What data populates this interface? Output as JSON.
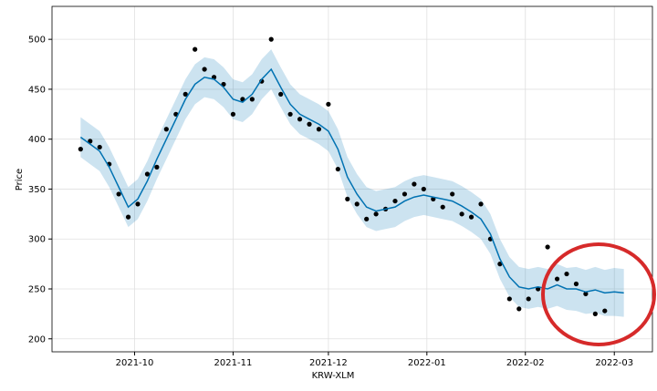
{
  "chart_data": {
    "type": "forecast",
    "xlabel": "KRW-XLM",
    "ylabel": "Price",
    "xlim": [
      "2021-09-05",
      "2022-03-13"
    ],
    "ylim": [
      187,
      533
    ],
    "xticks": [
      {
        "value": "2021-10-01",
        "label": "2021-10"
      },
      {
        "value": "2021-11-01",
        "label": "2021-11"
      },
      {
        "value": "2021-12-01",
        "label": "2021-12"
      },
      {
        "value": "2022-01-01",
        "label": "2022-01"
      },
      {
        "value": "2022-02-01",
        "label": "2022-02"
      },
      {
        "value": "2022-03-01",
        "label": "2022-03"
      }
    ],
    "yticks": [
      200,
      250,
      300,
      350,
      400,
      450,
      500
    ],
    "grid": true,
    "x": [
      "2021-09-14",
      "2021-09-17",
      "2021-09-20",
      "2021-09-23",
      "2021-09-26",
      "2021-09-29",
      "2021-10-02",
      "2021-10-05",
      "2021-10-08",
      "2021-10-11",
      "2021-10-14",
      "2021-10-17",
      "2021-10-20",
      "2021-10-23",
      "2021-10-26",
      "2021-10-29",
      "2021-11-01",
      "2021-11-04",
      "2021-11-07",
      "2021-11-10",
      "2021-11-13",
      "2021-11-16",
      "2021-11-19",
      "2021-11-22",
      "2021-11-25",
      "2021-11-28",
      "2021-12-01",
      "2021-12-04",
      "2021-12-07",
      "2021-12-10",
      "2021-12-13",
      "2021-12-16",
      "2021-12-19",
      "2021-12-22",
      "2021-12-25",
      "2021-12-28",
      "2021-12-31",
      "2022-01-03",
      "2022-01-06",
      "2022-01-09",
      "2022-01-12",
      "2022-01-15",
      "2022-01-18",
      "2022-01-21",
      "2022-01-24",
      "2022-01-27",
      "2022-01-30",
      "2022-02-02",
      "2022-02-05",
      "2022-02-08",
      "2022-02-11",
      "2022-02-14",
      "2022-02-17",
      "2022-02-20",
      "2022-02-23",
      "2022-02-26",
      "2022-03-01",
      "2022-03-04"
    ],
    "observed": {
      "color": "#000000",
      "values": [
        390,
        398,
        392,
        375,
        345,
        322,
        335,
        365,
        372,
        410,
        425,
        445,
        490,
        470,
        462,
        455,
        425,
        440,
        440,
        458,
        500,
        445,
        425,
        420,
        415,
        410,
        435,
        370,
        340,
        335,
        320,
        325,
        330,
        338,
        345,
        355,
        350,
        340,
        332,
        345,
        325,
        322,
        335,
        300,
        275,
        240,
        230,
        240,
        250,
        292,
        260,
        265,
        255,
        245,
        225,
        228,
        null,
        null
      ]
    },
    "forecast": {
      "color": "#0072b2",
      "values": [
        402,
        395,
        388,
        372,
        352,
        332,
        340,
        358,
        380,
        400,
        420,
        440,
        455,
        462,
        460,
        452,
        440,
        437,
        445,
        460,
        470,
        452,
        435,
        425,
        420,
        415,
        408,
        390,
        362,
        345,
        332,
        328,
        330,
        332,
        338,
        342,
        344,
        342,
        340,
        338,
        333,
        327,
        320,
        305,
        280,
        262,
        252,
        250,
        252,
        250,
        254,
        250,
        250,
        247,
        249,
        246,
        247,
        246
      ],
      "lower": [
        382,
        375,
        368,
        352,
        332,
        312,
        320,
        338,
        360,
        380,
        400,
        420,
        435,
        442,
        440,
        432,
        420,
        417,
        425,
        440,
        450,
        432,
        415,
        405,
        400,
        395,
        388,
        370,
        342,
        325,
        312,
        308,
        310,
        312,
        318,
        322,
        324,
        322,
        320,
        318,
        313,
        307,
        300,
        285,
        260,
        242,
        232,
        230,
        232,
        230,
        233,
        229,
        228,
        225,
        226,
        223,
        223,
        222
      ],
      "upper": [
        422,
        415,
        408,
        392,
        372,
        352,
        360,
        378,
        400,
        420,
        440,
        460,
        475,
        482,
        480,
        472,
        460,
        457,
        465,
        480,
        490,
        472,
        455,
        445,
        440,
        435,
        428,
        410,
        382,
        365,
        352,
        348,
        350,
        352,
        358,
        362,
        364,
        362,
        360,
        358,
        353,
        347,
        340,
        325,
        300,
        282,
        272,
        270,
        272,
        270,
        275,
        271,
        272,
        269,
        272,
        269,
        271,
        270
      ]
    }
  }
}
